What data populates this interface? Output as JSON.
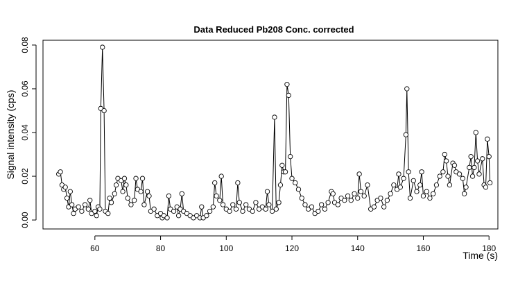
{
  "chart_data": {
    "type": "line",
    "title": "Data Reduced Pb208 Conc. corrected",
    "x_label": "Time (s)",
    "y_label": "Signal intensity (cps)",
    "x": [
      49,
      49.5,
      50,
      50.5,
      51,
      51.5,
      52,
      52.5,
      53,
      53.5,
      54,
      55,
      56,
      57,
      58,
      58.5,
      59,
      60,
      60.5,
      61,
      61.5,
      61.8,
      62.3,
      62.8,
      63.2,
      64,
      64.5,
      65,
      66,
      66.5,
      67,
      68,
      68.5,
      69,
      69.5,
      70,
      71,
      72,
      72.5,
      73,
      74,
      74.5,
      75,
      76,
      76.5,
      77,
      78,
      79,
      80,
      80.5,
      81,
      82,
      82.5,
      83,
      84,
      85,
      85.5,
      86,
      86.5,
      87,
      88,
      89,
      90,
      91,
      92,
      92.5,
      93,
      94,
      95,
      96,
      96.5,
      97,
      98,
      98.5,
      99,
      100,
      101,
      102,
      103,
      103.5,
      104,
      105,
      106,
      107,
      108,
      109,
      110,
      111,
      112,
      112.5,
      113,
      114,
      114.7,
      115.2,
      116,
      116.5,
      117,
      117.5,
      118,
      118.5,
      119,
      119.5,
      120,
      121,
      122,
      123,
      124,
      125,
      126,
      127,
      128,
      129,
      130,
      131,
      132,
      132.5,
      133,
      134,
      135,
      136,
      137,
      138,
      139,
      140,
      140.5,
      141,
      142,
      143,
      144,
      145,
      146,
      147,
      148,
      149,
      150,
      151,
      152,
      152.5,
      153,
      154,
      154.7,
      155,
      155.5,
      156,
      157,
      158,
      159,
      159.5,
      160,
      161,
      162,
      163,
      164,
      165,
      166,
      166.5,
      167,
      167.5,
      168,
      169,
      169.5,
      170,
      171,
      172,
      172.5,
      173,
      174,
      174.5,
      175,
      175.5,
      176,
      176.5,
      177,
      178,
      178.5,
      179,
      179.5,
      180,
      180.3
    ],
    "series": [
      {
        "color": "#000000",
        "values": [
          0.021,
          0.022,
          0.016,
          0.014,
          0.015,
          0.01,
          0.006,
          0.013,
          0.007,
          0.003,
          0.005,
          0.006,
          0.004,
          0.007,
          0.005,
          0.009,
          0.003,
          0.004,
          0.002,
          0.006,
          0.005,
          0.051,
          0.079,
          0.05,
          0.004,
          0.003,
          0.01,
          0.008,
          0.012,
          0.016,
          0.019,
          0.018,
          0.013,
          0.019,
          0.016,
          0.01,
          0.007,
          0.009,
          0.019,
          0.014,
          0.013,
          0.019,
          0.007,
          0.013,
          0.011,
          0.004,
          0.005,
          0.002,
          0.003,
          0.001,
          0.002,
          0.001,
          0.011,
          0.005,
          0.004,
          0.006,
          0.002,
          0.005,
          0.012,
          0.004,
          0.003,
          0.002,
          0.001,
          0.002,
          0.001,
          0.006,
          0.001,
          0.002,
          0.004,
          0.006,
          0.017,
          0.011,
          0.009,
          0.02,
          0.007,
          0.005,
          0.004,
          0.007,
          0.005,
          0.017,
          0.008,
          0.004,
          0.007,
          0.005,
          0.004,
          0.008,
          0.005,
          0.006,
          0.005,
          0.013,
          0.007,
          0.004,
          0.047,
          0.005,
          0.008,
          0.016,
          0.025,
          0.022,
          0.022,
          0.062,
          0.057,
          0.029,
          0.019,
          0.017,
          0.014,
          0.01,
          0.007,
          0.005,
          0.006,
          0.003,
          0.004,
          0.007,
          0.005,
          0.008,
          0.013,
          0.012,
          0.008,
          0.007,
          0.01,
          0.009,
          0.011,
          0.009,
          0.012,
          0.01,
          0.021,
          0.013,
          0.011,
          0.016,
          0.005,
          0.006,
          0.009,
          0.01,
          0.006,
          0.009,
          0.012,
          0.016,
          0.014,
          0.021,
          0.015,
          0.019,
          0.039,
          0.06,
          0.022,
          0.01,
          0.018,
          0.013,
          0.016,
          0.022,
          0.011,
          0.013,
          0.01,
          0.012,
          0.016,
          0.02,
          0.022,
          0.03,
          0.027,
          0.02,
          0.016,
          0.026,
          0.025,
          0.022,
          0.021,
          0.019,
          0.012,
          0.015,
          0.024,
          0.029,
          0.02,
          0.024,
          0.04,
          0.027,
          0.021,
          0.028,
          0.016,
          0.015,
          0.037,
          0.029,
          0.017
        ]
      }
    ],
    "xlim": [
      44.2,
      182.7
    ],
    "xticks": [
      60,
      80,
      100,
      120,
      140,
      160,
      180
    ],
    "ylim": [
      -0.0041,
      0.0822
    ],
    "yticks": [
      {
        "value": 0,
        "label": "0.00"
      },
      0.02,
      0.04,
      0.06,
      0.08
    ]
  }
}
